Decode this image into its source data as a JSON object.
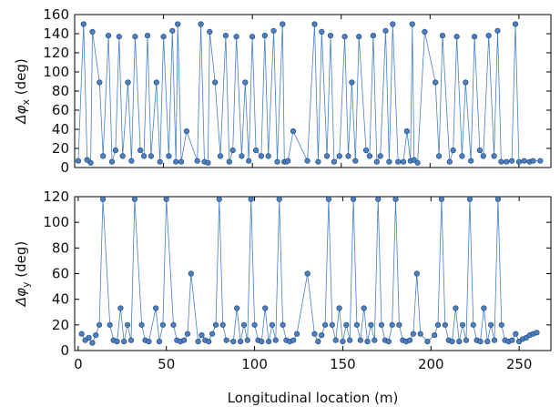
{
  "chart_data": [
    {
      "type": "line",
      "title": "",
      "xlabel": "",
      "ylabel_prefix": "Δφ",
      "ylabel_sub": "x",
      "ylabel_suffix": " (deg)",
      "xlim": [
        0,
        268
      ],
      "ylim": [
        0,
        160
      ],
      "yticks": [
        "0",
        "20",
        "40",
        "60",
        "80",
        "100",
        "120",
        "140",
        "160"
      ],
      "series": [
        {
          "color": "#4a7fc0",
          "x": [
            2,
            5,
            7,
            9,
            10,
            14,
            16,
            19,
            21,
            23,
            25,
            27,
            30,
            32,
            34,
            37,
            39,
            41,
            43,
            46,
            48,
            50,
            53,
            55,
            57,
            58,
            60,
            63,
            69,
            71,
            73,
            75,
            76,
            79,
            82,
            85,
            87,
            89,
            91,
            94,
            96,
            98,
            100,
            102,
            105,
            107,
            109,
            112,
            114,
            117,
            118,
            119,
            120,
            123,
            131,
            135,
            137,
            139,
            142,
            144,
            146,
            149,
            152,
            154,
            156,
            158,
            160,
            164,
            166,
            168,
            170,
            172,
            175,
            177,
            179,
            182,
            185,
            187,
            189,
            190,
            191,
            193,
            197,
            203,
            205,
            207,
            211,
            213,
            215,
            218,
            220,
            223,
            225,
            228,
            230,
            233,
            236,
            238,
            240,
            243,
            246,
            248,
            250,
            253,
            256,
            258,
            262
          ],
          "y": [
            7,
            150,
            8,
            5,
            142,
            89,
            12,
            138,
            6,
            18,
            137,
            12,
            89,
            7,
            137,
            18,
            12,
            138,
            12,
            89,
            6,
            137,
            12,
            143,
            6,
            150,
            6,
            38,
            7,
            150,
            6,
            5,
            142,
            89,
            12,
            138,
            6,
            18,
            137,
            12,
            89,
            7,
            137,
            18,
            12,
            138,
            12,
            143,
            6,
            150,
            6,
            6,
            7,
            38,
            7,
            150,
            6,
            142,
            12,
            138,
            6,
            12,
            137,
            12,
            89,
            7,
            137,
            18,
            12,
            138,
            6,
            12,
            143,
            6,
            150,
            6,
            6,
            38,
            7,
            150,
            8,
            5,
            142,
            89,
            12,
            138,
            6,
            18,
            137,
            12,
            89,
            7,
            137,
            18,
            12,
            138,
            12,
            143,
            6,
            6,
            7,
            150,
            6,
            7,
            6,
            7,
            7
          ]
        }
      ]
    },
    {
      "type": "line",
      "title": "",
      "xlabel": "Longitudinal location (m)",
      "ylabel_prefix": "Δφ",
      "ylabel_sub": "y",
      "ylabel_suffix": " (deg)",
      "xlim": [
        -2,
        268
      ],
      "ylim": [
        0,
        120
      ],
      "yticks": [
        "0",
        "20",
        "40",
        "60",
        "80",
        "100",
        "120"
      ],
      "xticks": [
        "0",
        "50",
        "100",
        "150",
        "200",
        "250"
      ],
      "series": [
        {
          "color": "#4a7fc0",
          "x": [
            2,
            4,
            6,
            8,
            10,
            12,
            14,
            18,
            20,
            22,
            24,
            26,
            28,
            30,
            32,
            36,
            38,
            40,
            44,
            46,
            48,
            50,
            54,
            56,
            58,
            60,
            62,
            64,
            68,
            70,
            72,
            74,
            76,
            78,
            80,
            82,
            84,
            88,
            90,
            92,
            94,
            96,
            98,
            100,
            102,
            104,
            106,
            108,
            110,
            112,
            114,
            116,
            118,
            120,
            122,
            124,
            130,
            134,
            136,
            138,
            140,
            142,
            144,
            146,
            148,
            150,
            152,
            154,
            156,
            158,
            160,
            162,
            164,
            166,
            168,
            170,
            172,
            174,
            176,
            178,
            180,
            182,
            184,
            186,
            188,
            190,
            192,
            194,
            198,
            202,
            204,
            206,
            208,
            210,
            212,
            214,
            216,
            218,
            220,
            222,
            224,
            226,
            228,
            230,
            232,
            234,
            236,
            238,
            240,
            242,
            244,
            246,
            248,
            250,
            252,
            254,
            256,
            258,
            260
          ],
          "y": [
            13,
            8,
            10,
            6,
            12,
            20,
            118,
            20,
            8,
            7,
            33,
            7,
            20,
            8,
            118,
            20,
            8,
            7,
            33,
            7,
            20,
            118,
            20,
            8,
            7,
            8,
            13,
            60,
            7,
            12,
            8,
            7,
            13,
            20,
            118,
            20,
            8,
            7,
            33,
            7,
            20,
            8,
            118,
            20,
            8,
            7,
            33,
            7,
            20,
            8,
            118,
            20,
            8,
            7,
            8,
            13,
            60,
            13,
            7,
            12,
            20,
            118,
            20,
            8,
            33,
            7,
            20,
            8,
            118,
            20,
            8,
            33,
            7,
            20,
            8,
            118,
            20,
            8,
            7,
            20,
            118,
            20,
            8,
            7,
            8,
            13,
            60,
            13,
            7,
            12,
            20,
            118,
            20,
            8,
            7,
            33,
            7,
            20,
            8,
            118,
            20,
            8,
            7,
            33,
            7,
            20,
            8,
            118,
            20,
            8,
            7,
            8,
            13,
            7,
            9,
            10,
            12,
            13,
            14
          ]
        }
      ]
    }
  ]
}
